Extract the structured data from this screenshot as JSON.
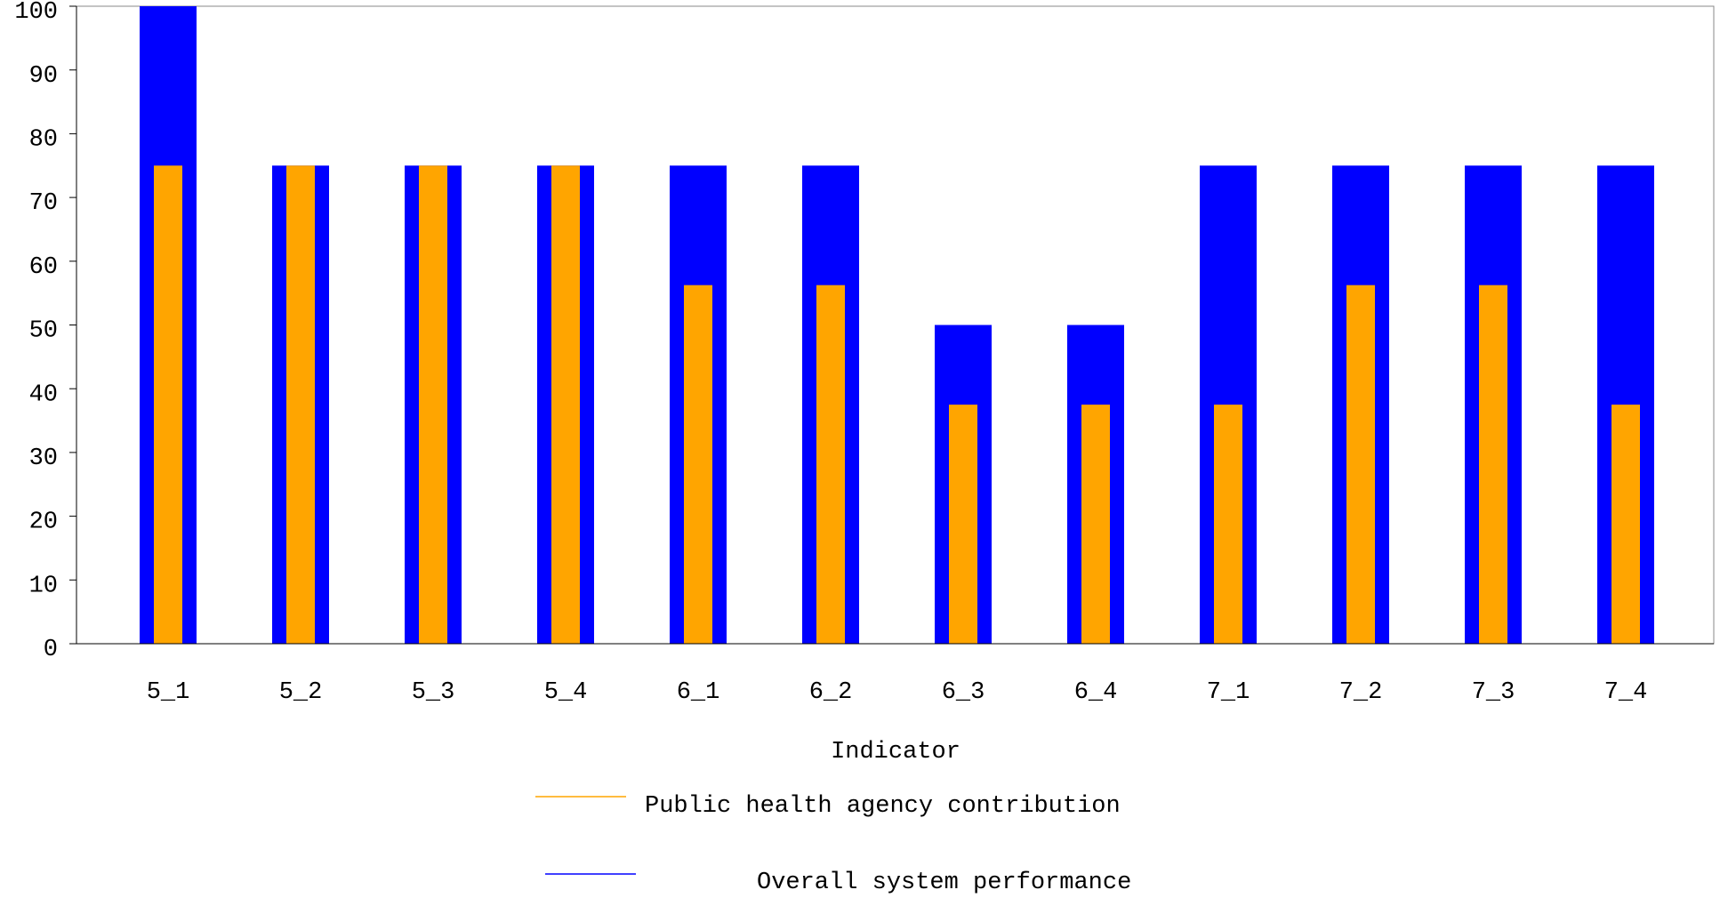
{
  "chart_data": {
    "type": "bar",
    "x_label": "Indicator",
    "categories": [
      "5_1",
      "5_2",
      "5_3",
      "5_4",
      "6_1",
      "6_2",
      "6_3",
      "6_4",
      "7_1",
      "7_2",
      "7_3",
      "7_4"
    ],
    "series": [
      {
        "name": "Public health agency contribution",
        "color": "#ffa500",
        "values": [
          75,
          75,
          75,
          75,
          56.25,
          56.25,
          37.5,
          37.5,
          37.5,
          56.25,
          56.25,
          37.5
        ]
      },
      {
        "name": "Overall system performance",
        "color": "#0000ff",
        "values": [
          100,
          75,
          75,
          75,
          75,
          75,
          50,
          50,
          75,
          75,
          75,
          75
        ]
      }
    ],
    "ylim": [
      0,
      100
    ],
    "yticks": [
      0,
      10,
      20,
      30,
      40,
      50,
      60,
      70,
      80,
      90,
      100
    ],
    "grid": false
  }
}
